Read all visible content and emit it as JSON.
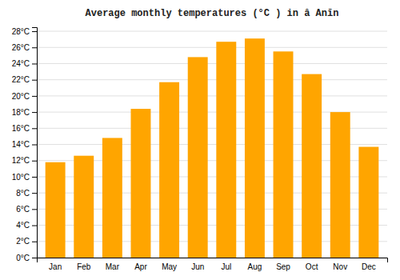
{
  "chart_data": {
    "type": "bar",
    "title": "Average monthly temperatures (°C ) in â Anīn",
    "categories": [
      "Jan",
      "Feb",
      "Mar",
      "Apr",
      "May",
      "Jun",
      "Jul",
      "Aug",
      "Sep",
      "Oct",
      "Nov",
      "Dec"
    ],
    "values": [
      11.8,
      12.6,
      14.8,
      18.4,
      21.7,
      24.8,
      26.7,
      27.1,
      25.5,
      22.7,
      18.0,
      13.7
    ],
    "color": "#FFA500",
    "ylim": [
      0,
      28.5
    ],
    "yticks": [
      {
        "value": 0,
        "label": "0°C"
      },
      {
        "value": 2,
        "label": "2°C"
      },
      {
        "value": 4,
        "label": "4°C"
      },
      {
        "value": 6,
        "label": "6°C"
      },
      {
        "value": 8,
        "label": "8°C"
      },
      {
        "value": 10,
        "label": "10°C"
      },
      {
        "value": 12,
        "label": "12°C"
      },
      {
        "value": 14,
        "label": "14°C"
      },
      {
        "value": 16,
        "label": "16°C"
      },
      {
        "value": 18,
        "label": "18°C"
      },
      {
        "value": 20,
        "label": "20°C"
      },
      {
        "value": 22,
        "label": "22°C"
      },
      {
        "value": 24,
        "label": "24°C"
      },
      {
        "value": 26,
        "label": "26°C"
      },
      {
        "value": 28,
        "label": "28°C"
      }
    ],
    "grid": true
  }
}
